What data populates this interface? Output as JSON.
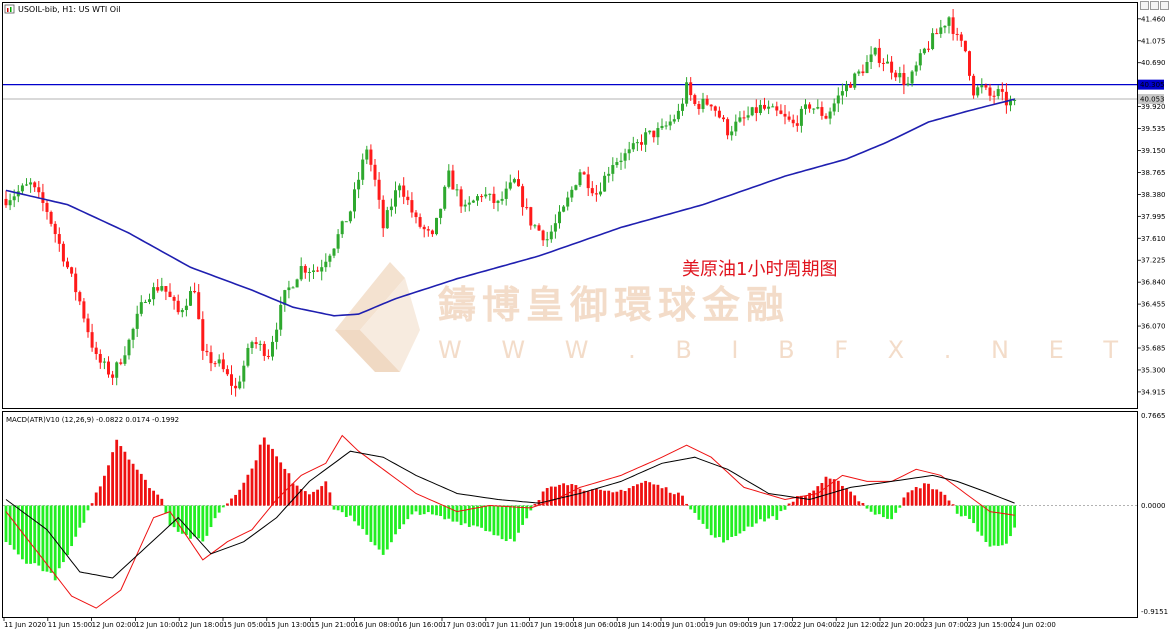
{
  "window": {
    "title": "USOIL-bib, H1:  US WTI Oil",
    "icon": "chart-window-icon",
    "controls": [
      "minimize-icon",
      "restore-icon",
      "close-icon"
    ]
  },
  "annotation": "美原油1小时周期图",
  "watermark": {
    "brand": "鑄博皇御環球金融",
    "url": "W W W . B I B F X . N E T"
  },
  "price_axis": {
    "labels": [
      "41.460",
      "41.075",
      "40.690",
      "39.920",
      "39.535",
      "39.150",
      "38.765",
      "38.380",
      "37.995",
      "37.610",
      "37.225",
      "36.840",
      "36.455",
      "36.070",
      "35.685",
      "35.300",
      "34.915"
    ],
    "level_tag": "40.305",
    "bid_tag": "40.053"
  },
  "indicator": {
    "header": "MACD(ATR)V10 (12,26,9) -0.0822 0.0174 -0.1992",
    "axis_labels": [
      "0.7665",
      "0.0000",
      "-0.9151"
    ]
  },
  "time_axis": {
    "labels": [
      "11 Jun 2020",
      "11 Jun 15:00",
      "12 Jun 02:00",
      "12 Jun 10:00",
      "12 Jun 18:00",
      "15 Jun 05:00",
      "15 Jun 13:00",
      "15 Jun 21:00",
      "16 Jun 08:00",
      "16 Jun 16:00",
      "17 Jun 03:00",
      "17 Jun 11:00",
      "17 Jun 19:00",
      "18 Jun 06:00",
      "18 Jun 14:00",
      "19 Jun 01:00",
      "19 Jun 09:00",
      "19 Jun 17:00",
      "22 Jun 04:00",
      "22 Jun 12:00",
      "22 Jun 20:00",
      "23 Jun 07:00",
      "23 Jun 15:00",
      "24 Jun 02:00"
    ]
  },
  "colors": {
    "bull": "#2ea82e",
    "bear": "#ff1a1a",
    "ma": "#1f1fb0",
    "level": "#0000cc",
    "hist_pos": "#ee1111",
    "hist_neg": "#22ee22",
    "macd": "#ee1111",
    "signal": "#000000"
  },
  "chart_data": {
    "type": "candlestick",
    "title": "USOIL-bib, H1:  US WTI Oil",
    "symbol": "USOIL-bib",
    "timeframe": "H1",
    "ylim": [
      34.65,
      41.72
    ],
    "horizontal_level": 40.305,
    "bid_line": 40.053,
    "close_path_anchors": [
      [
        0,
        38.3
      ],
      [
        6,
        38.55
      ],
      [
        10,
        38.1
      ],
      [
        14,
        37.3
      ],
      [
        18,
        36.5
      ],
      [
        22,
        35.5
      ],
      [
        26,
        35.2
      ],
      [
        30,
        35.8
      ],
      [
        34,
        36.6
      ],
      [
        38,
        36.8
      ],
      [
        42,
        36.3
      ],
      [
        46,
        36.75
      ],
      [
        48,
        35.55
      ],
      [
        52,
        35.4
      ],
      [
        56,
        34.95
      ],
      [
        60,
        35.8
      ],
      [
        64,
        35.6
      ],
      [
        68,
        36.6
      ],
      [
        72,
        37.1
      ],
      [
        76,
        37.05
      ],
      [
        80,
        37.5
      ],
      [
        84,
        38.1
      ],
      [
        88,
        39.2
      ],
      [
        90,
        38.6
      ],
      [
        92,
        37.8
      ],
      [
        96,
        38.6
      ],
      [
        100,
        37.9
      ],
      [
        104,
        37.6
      ],
      [
        108,
        38.7
      ],
      [
        112,
        38.1
      ],
      [
        116,
        38.4
      ],
      [
        120,
        38.2
      ],
      [
        124,
        38.6
      ],
      [
        128,
        37.9
      ],
      [
        132,
        37.6
      ],
      [
        136,
        38.1
      ],
      [
        140,
        38.8
      ],
      [
        144,
        38.4
      ],
      [
        148,
        38.95
      ],
      [
        152,
        39.1
      ],
      [
        156,
        39.4
      ],
      [
        160,
        39.5
      ],
      [
        164,
        39.8
      ],
      [
        166,
        40.25
      ],
      [
        168,
        39.95
      ],
      [
        172,
        40.0
      ],
      [
        176,
        39.5
      ],
      [
        180,
        39.7
      ],
      [
        184,
        39.9
      ],
      [
        188,
        39.8
      ],
      [
        192,
        39.6
      ],
      [
        196,
        39.95
      ],
      [
        200,
        39.75
      ],
      [
        204,
        40.2
      ],
      [
        208,
        40.5
      ],
      [
        212,
        40.85
      ],
      [
        216,
        40.6
      ],
      [
        220,
        40.3
      ],
      [
        224,
        40.9
      ],
      [
        228,
        41.3
      ],
      [
        230,
        41.5
      ],
      [
        232,
        41.1
      ],
      [
        234,
        40.9
      ],
      [
        236,
        40.2
      ],
      [
        238,
        40.25
      ],
      [
        240,
        40.1
      ],
      [
        242,
        40.15
      ],
      [
        244,
        40.0
      ],
      [
        246,
        39.95
      ]
    ],
    "moving_average_anchors": [
      [
        0,
        38.45
      ],
      [
        15,
        38.2
      ],
      [
        30,
        37.7
      ],
      [
        45,
        37.1
      ],
      [
        60,
        36.7
      ],
      [
        70,
        36.4
      ],
      [
        80,
        36.25
      ],
      [
        86,
        36.28
      ],
      [
        95,
        36.55
      ],
      [
        110,
        36.9
      ],
      [
        130,
        37.3
      ],
      [
        150,
        37.8
      ],
      [
        170,
        38.2
      ],
      [
        190,
        38.7
      ],
      [
        205,
        39.0
      ],
      [
        215,
        39.3
      ],
      [
        225,
        39.65
      ],
      [
        235,
        39.85
      ],
      [
        246,
        40.05
      ]
    ],
    "macd_panel": {
      "ylim": [
        -0.9151,
        0.7665
      ],
      "histogram_anchors": [
        [
          0,
          -0.3
        ],
        [
          4,
          -0.45
        ],
        [
          8,
          -0.5
        ],
        [
          12,
          -0.6
        ],
        [
          16,
          -0.35
        ],
        [
          20,
          -0.05
        ],
        [
          24,
          0.25
        ],
        [
          27,
          0.55
        ],
        [
          30,
          0.4
        ],
        [
          34,
          0.2
        ],
        [
          38,
          0.05
        ],
        [
          40,
          -0.15
        ],
        [
          44,
          -0.25
        ],
        [
          48,
          -0.3
        ],
        [
          52,
          -0.05
        ],
        [
          56,
          0.1
        ],
        [
          60,
          0.3
        ],
        [
          63,
          0.58
        ],
        [
          66,
          0.4
        ],
        [
          70,
          0.2
        ],
        [
          74,
          0.1
        ],
        [
          78,
          0.2
        ],
        [
          80,
          -0.02
        ],
        [
          84,
          -0.1
        ],
        [
          88,
          -0.25
        ],
        [
          92,
          -0.4
        ],
        [
          96,
          -0.2
        ],
        [
          100,
          -0.05
        ],
        [
          104,
          -0.08
        ],
        [
          108,
          -0.12
        ],
        [
          112,
          -0.15
        ],
        [
          116,
          -0.18
        ],
        [
          120,
          -0.25
        ],
        [
          124,
          -0.3
        ],
        [
          128,
          -0.05
        ],
        [
          132,
          0.15
        ],
        [
          136,
          0.2
        ],
        [
          140,
          0.15
        ],
        [
          144,
          0.12
        ],
        [
          148,
          0.1
        ],
        [
          152,
          0.15
        ],
        [
          156,
          0.2
        ],
        [
          160,
          0.15
        ],
        [
          164,
          0.1
        ],
        [
          168,
          -0.05
        ],
        [
          172,
          -0.25
        ],
        [
          176,
          -0.3
        ],
        [
          180,
          -0.2
        ],
        [
          184,
          -0.12
        ],
        [
          188,
          -0.1
        ],
        [
          192,
          0.05
        ],
        [
          196,
          0.1
        ],
        [
          200,
          0.22
        ],
        [
          204,
          0.18
        ],
        [
          208,
          0.05
        ],
        [
          212,
          -0.08
        ],
        [
          216,
          -0.1
        ],
        [
          220,
          0.1
        ],
        [
          224,
          0.18
        ],
        [
          228,
          0.12
        ],
        [
          232,
          -0.05
        ],
        [
          236,
          -0.15
        ],
        [
          240,
          -0.35
        ],
        [
          244,
          -0.3
        ],
        [
          246,
          -0.2
        ]
      ],
      "macd_anchors": [
        [
          0,
          -0.05
        ],
        [
          8,
          -0.4
        ],
        [
          16,
          -0.75
        ],
        [
          22,
          -0.85
        ],
        [
          28,
          -0.7
        ],
        [
          36,
          -0.1
        ],
        [
          40,
          -0.05
        ],
        [
          44,
          -0.25
        ],
        [
          48,
          -0.45
        ],
        [
          54,
          -0.3
        ],
        [
          60,
          -0.2
        ],
        [
          66,
          0.05
        ],
        [
          72,
          0.25
        ],
        [
          78,
          0.35
        ],
        [
          82,
          0.58
        ],
        [
          86,
          0.45
        ],
        [
          92,
          0.3
        ],
        [
          100,
          0.1
        ],
        [
          110,
          -0.05
        ],
        [
          118,
          0.0
        ],
        [
          128,
          -0.02
        ],
        [
          134,
          0.05
        ],
        [
          140,
          0.15
        ],
        [
          150,
          0.25
        ],
        [
          160,
          0.4
        ],
        [
          166,
          0.5
        ],
        [
          172,
          0.4
        ],
        [
          180,
          0.15
        ],
        [
          190,
          0.05
        ],
        [
          198,
          0.1
        ],
        [
          204,
          0.25
        ],
        [
          210,
          0.2
        ],
        [
          216,
          0.2
        ],
        [
          222,
          0.3
        ],
        [
          228,
          0.25
        ],
        [
          236,
          0.05
        ],
        [
          240,
          -0.05
        ],
        [
          246,
          -0.08
        ]
      ],
      "signal_anchors": [
        [
          0,
          0.05
        ],
        [
          10,
          -0.2
        ],
        [
          18,
          -0.55
        ],
        [
          26,
          -0.6
        ],
        [
          34,
          -0.35
        ],
        [
          42,
          -0.1
        ],
        [
          50,
          -0.4
        ],
        [
          58,
          -0.3
        ],
        [
          66,
          -0.1
        ],
        [
          74,
          0.2
        ],
        [
          84,
          0.45
        ],
        [
          92,
          0.4
        ],
        [
          100,
          0.25
        ],
        [
          110,
          0.1
        ],
        [
          120,
          0.05
        ],
        [
          130,
          0.02
        ],
        [
          140,
          0.1
        ],
        [
          150,
          0.2
        ],
        [
          160,
          0.35
        ],
        [
          168,
          0.4
        ],
        [
          176,
          0.3
        ],
        [
          186,
          0.1
        ],
        [
          196,
          0.05
        ],
        [
          206,
          0.15
        ],
        [
          216,
          0.2
        ],
        [
          226,
          0.25
        ],
        [
          232,
          0.2
        ],
        [
          240,
          0.1
        ],
        [
          246,
          0.02
        ]
      ]
    }
  }
}
